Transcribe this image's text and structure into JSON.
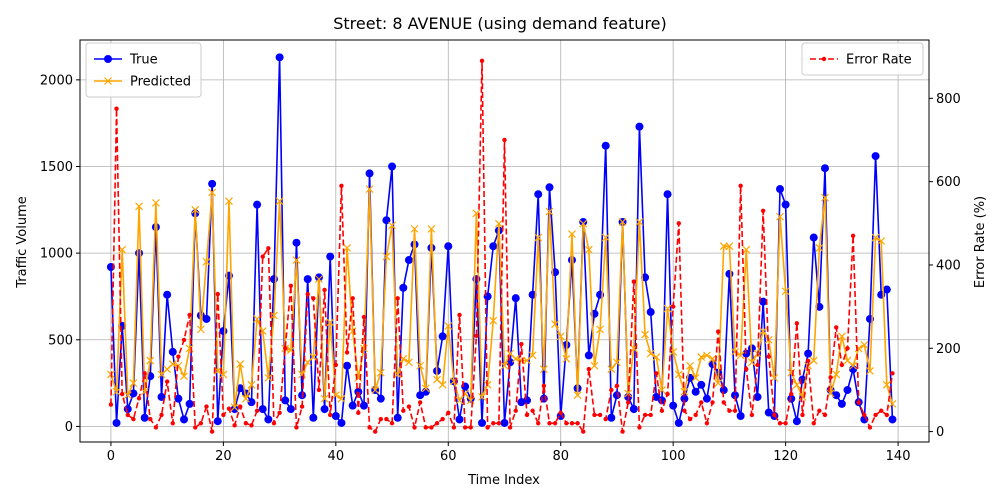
{
  "chart_data": {
    "type": "line",
    "title": "Street: 8 AVENUE (using demand feature)",
    "xlabel": "Time Index",
    "ylabel": "Traffic Volume",
    "y2label": "Error Rate (%)",
    "xlim": [
      -5.5,
      145.5
    ],
    "ylim": [
      -90,
      2230
    ],
    "y2lim": [
      -25,
      940
    ],
    "xticks": [
      0,
      20,
      40,
      60,
      80,
      100,
      120,
      140
    ],
    "yticks": [
      0,
      500,
      1000,
      1500,
      2000
    ],
    "y2ticks": [
      0,
      200,
      400,
      600,
      800
    ],
    "grid": true,
    "legend_left": "upper-left",
    "legend_right": "upper-right",
    "series": [
      {
        "name": "True",
        "axis": "left",
        "color": "#0000ff",
        "marker": "circle",
        "values": [
          920,
          20,
          580,
          100,
          190,
          1000,
          50,
          290,
          1150,
          170,
          760,
          430,
          160,
          40,
          130,
          1230,
          640,
          620,
          1400,
          30,
          550,
          870,
          100,
          220,
          190,
          140,
          1280,
          100,
          40,
          850,
          2130,
          150,
          100,
          1060,
          180,
          850,
          50,
          860,
          100,
          980,
          60,
          20,
          350,
          120,
          200,
          120,
          1460,
          210,
          160,
          1190,
          1500,
          50,
          800,
          960,
          1050,
          180,
          200,
          1030,
          320,
          520,
          1040,
          260,
          40,
          230,
          160,
          850,
          20,
          750,
          1040,
          1130,
          20,
          370,
          740,
          140,
          150,
          760,
          1340,
          160,
          1380,
          890,
          60,
          470,
          960,
          220,
          1180,
          410,
          650,
          760,
          1620,
          50,
          180,
          1180,
          170,
          100,
          1730,
          860,
          660,
          170,
          150,
          1340,
          120,
          20,
          160,
          280,
          200,
          240,
          160,
          360,
          310,
          210,
          880,
          180,
          60,
          420,
          450,
          170,
          720,
          80,
          60,
          1370,
          1280,
          160,
          30,
          270,
          420,
          1090,
          690,
          1490,
          210,
          180,
          130,
          210,
          330,
          140,
          40,
          620,
          1560,
          760,
          790,
          40
        ]
      },
      {
        "name": "Predicted",
        "axis": "left",
        "color": "#ffa500",
        "marker": "x",
        "values": [
          300,
          200,
          1020,
          180,
          250,
          1270,
          200,
          380,
          1290,
          300,
          330,
          360,
          350,
          290,
          450,
          1250,
          560,
          950,
          1350,
          320,
          300,
          1300,
          110,
          360,
          160,
          240,
          620,
          550,
          280,
          640,
          1300,
          450,
          440,
          960,
          300,
          370,
          400,
          850,
          160,
          600,
          180,
          160,
          1030,
          550,
          280,
          450,
          1370,
          210,
          310,
          980,
          1160,
          300,
          390,
          370,
          1140,
          350,
          220,
          1140,
          270,
          240,
          580,
          260,
          150,
          190,
          150,
          1230,
          170,
          240,
          610,
          1170,
          350,
          420,
          390,
          380,
          380,
          410,
          1090,
          330,
          1240,
          590,
          520,
          390,
          1110,
          180,
          1170,
          1020,
          350,
          560,
          1090,
          330,
          370,
          1180,
          190,
          450,
          1180,
          530,
          420,
          400,
          210,
          680,
          430,
          300,
          200,
          350,
          280,
          400,
          410,
          390,
          250,
          1040,
          1040,
          430,
          410,
          1020,
          370,
          420,
          550,
          500,
          280,
          1210,
          780,
          310,
          240,
          170,
          350,
          380,
          1030,
          1320,
          190,
          300,
          520,
          380,
          350,
          450,
          470,
          320,
          1090,
          1070,
          240,
          130
        ]
      },
      {
        "name": "Error Rate",
        "axis": "right",
        "color": "#ff0000",
        "marker": "dot",
        "dashed": true,
        "values": [
          65,
          775,
          90,
          40,
          30,
          80,
          140,
          30,
          10,
          40,
          120,
          20,
          180,
          220,
          280,
          10,
          20,
          60,
          0,
          330,
          40,
          55,
          15,
          60,
          20,
          15,
          50,
          420,
          440,
          20,
          45,
          200,
          350,
          10,
          60,
          330,
          320,
          100,
          340,
          40,
          160,
          590,
          190,
          320,
          45,
          275,
          10,
          0,
          30,
          30,
          20,
          320,
          50,
          60,
          10,
          70,
          10,
          10,
          20,
          30,
          45,
          10,
          280,
          10,
          10,
          230,
          890,
          10,
          20,
          20,
          700,
          10,
          50,
          210,
          40,
          50,
          20,
          110,
          20,
          20,
          45,
          20,
          20,
          20,
          0,
          150,
          40,
          40,
          30,
          100,
          110,
          0,
          70,
          360,
          10,
          40,
          40,
          140,
          50,
          90,
          300,
          500,
          50,
          30,
          40,
          70,
          20,
          70,
          240,
          70,
          50,
          50,
          590,
          150,
          40,
          160,
          530,
          180,
          40,
          20,
          20,
          90,
          260,
          40,
          170,
          20,
          50,
          40,
          130,
          250,
          160,
          200,
          470,
          70,
          40,
          10,
          40,
          50,
          40,
          140
        ]
      }
    ]
  }
}
